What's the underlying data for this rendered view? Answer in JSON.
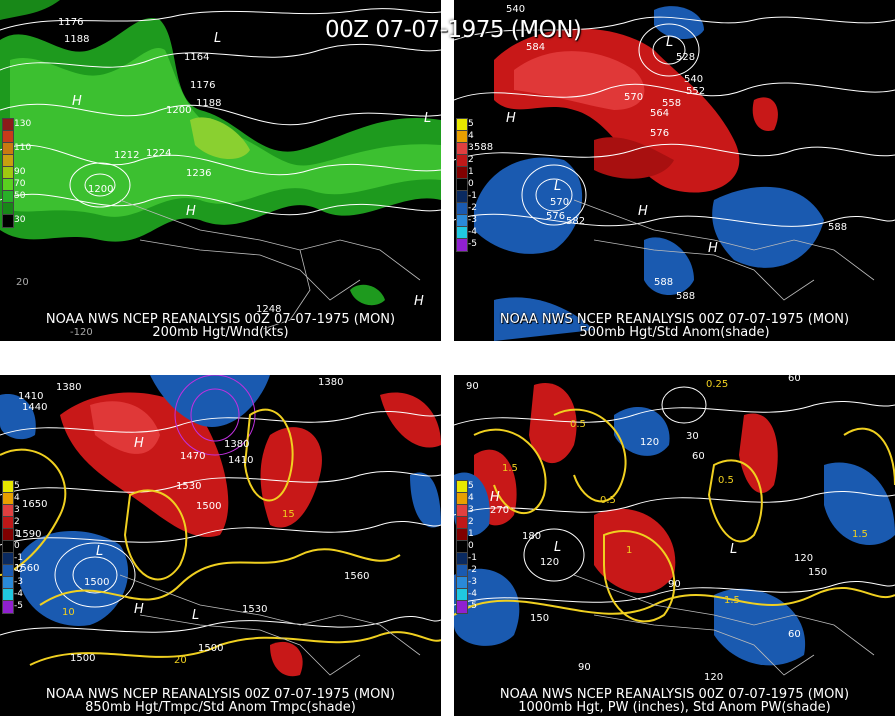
{
  "main_title": "00Z 07-07-1975 (MON)",
  "panels": [
    {
      "id": "p200",
      "caption_line1": "NOAA NWS NCEP REANALYSIS 00Z 07-07-1975 (MON)",
      "caption_line2": "200mb Hgt/Wnd(kts)",
      "scale": [
        {
          "label": "130",
          "color": "#8b1a1a"
        },
        {
          "label": "",
          "color": "#c83a1a"
        },
        {
          "label": "110",
          "color": "#c87a10"
        },
        {
          "label": "",
          "color": "#c8a010"
        },
        {
          "label": "90",
          "color": "#a0c810"
        },
        {
          "label": "70",
          "color": "#5ad020"
        },
        {
          "label": "50",
          "color": "#28b028"
        },
        {
          "label": "",
          "color": "#188818"
        },
        {
          "label": "30",
          "color": "#000000"
        }
      ],
      "labels": [
        {
          "text": "1176",
          "color": "#fff"
        },
        {
          "text": "1188",
          "color": "#fff"
        },
        {
          "text": "1164",
          "color": "#fff"
        },
        {
          "text": "1176",
          "color": "#fff"
        },
        {
          "text": "1188",
          "color": "#fff"
        },
        {
          "text": "1200",
          "color": "#fff"
        },
        {
          "text": "1212",
          "color": "#fff"
        },
        {
          "text": "1224",
          "color": "#fff"
        },
        {
          "text": "1236",
          "color": "#fff"
        },
        {
          "text": "1200",
          "color": "#fff"
        },
        {
          "text": "H",
          "color": "#fff"
        },
        {
          "text": "H",
          "color": "#fff"
        },
        {
          "text": "L",
          "color": "#fff"
        },
        {
          "text": "L",
          "color": "#fff"
        },
        {
          "text": "H",
          "color": "#fff"
        },
        {
          "text": "1248",
          "color": "#fff"
        },
        {
          "text": "-120",
          "color": "#aaa"
        },
        {
          "text": "20",
          "color": "#aaa"
        }
      ]
    },
    {
      "id": "p500",
      "caption_line1": "NOAA NWS NCEP REANALYSIS 00Z 07-07-1975 (MON)",
      "caption_line2": "500mb Hgt/Std Anom(shade)",
      "scale": [
        {
          "label": "5",
          "color": "#e8e800"
        },
        {
          "label": "4",
          "color": "#e8a000"
        },
        {
          "label": "3",
          "color": "#e04040"
        },
        {
          "label": "2",
          "color": "#c01818"
        },
        {
          "label": "1",
          "color": "#800000"
        },
        {
          "label": "0",
          "color": "#000000"
        },
        {
          "label": "-1",
          "color": "#0a2a60"
        },
        {
          "label": "-2",
          "color": "#1a5ab0"
        },
        {
          "label": "-3",
          "color": "#2a8ad8"
        },
        {
          "label": "-4",
          "color": "#20c8e0"
        },
        {
          "label": "-5",
          "color": "#9020d0"
        }
      ],
      "labels": [
        {
          "text": "540",
          "color": "#fff"
        },
        {
          "text": "584",
          "color": "#fff"
        },
        {
          "text": "528",
          "color": "#fff"
        },
        {
          "text": "540",
          "color": "#fff"
        },
        {
          "text": "552",
          "color": "#fff"
        },
        {
          "text": "558",
          "color": "#fff"
        },
        {
          "text": "564",
          "color": "#fff"
        },
        {
          "text": "570",
          "color": "#fff"
        },
        {
          "text": "576",
          "color": "#fff"
        },
        {
          "text": "588",
          "color": "#fff"
        },
        {
          "text": "570",
          "color": "#fff"
        },
        {
          "text": "576",
          "color": "#fff"
        },
        {
          "text": "582",
          "color": "#fff"
        },
        {
          "text": "588",
          "color": "#fff"
        },
        {
          "text": "588",
          "color": "#fff"
        },
        {
          "text": "588",
          "color": "#fff"
        },
        {
          "text": "H",
          "color": "#fff"
        },
        {
          "text": "H",
          "color": "#fff"
        },
        {
          "text": "H",
          "color": "#fff"
        },
        {
          "text": "L",
          "color": "#fff"
        },
        {
          "text": "L",
          "color": "#fff"
        }
      ]
    },
    {
      "id": "p850",
      "caption_line1": "NOAA NWS NCEP REANALYSIS 00Z 07-07-1975 (MON)",
      "caption_line2": "850mb Hgt/Tmpc/Std Anom Tmpc(shade)",
      "scale": [
        {
          "label": "5",
          "color": "#e8e800"
        },
        {
          "label": "4",
          "color": "#e8a000"
        },
        {
          "label": "3",
          "color": "#e04040"
        },
        {
          "label": "2",
          "color": "#c01818"
        },
        {
          "label": "1",
          "color": "#800000"
        },
        {
          "label": "0",
          "color": "#000000"
        },
        {
          "label": "-1",
          "color": "#0a2a60"
        },
        {
          "label": "-2",
          "color": "#1a5ab0"
        },
        {
          "label": "-3",
          "color": "#2a8ad8"
        },
        {
          "label": "-4",
          "color": "#20c8e0"
        },
        {
          "label": "-5",
          "color": "#9020d0"
        }
      ],
      "labels": [
        {
          "text": "1380",
          "color": "#fff"
        },
        {
          "text": "1410",
          "color": "#fff"
        },
        {
          "text": "1440",
          "color": "#fff"
        },
        {
          "text": "1470",
          "color": "#fff"
        },
        {
          "text": "1380",
          "color": "#fff"
        },
        {
          "text": "1410",
          "color": "#fff"
        },
        {
          "text": "1530",
          "color": "#fff"
        },
        {
          "text": "1500",
          "color": "#fff"
        },
        {
          "text": "1560",
          "color": "#fff"
        },
        {
          "text": "1590",
          "color": "#fff"
        },
        {
          "text": "1500",
          "color": "#fff"
        },
        {
          "text": "1530",
          "color": "#fff"
        },
        {
          "text": "1560",
          "color": "#fff"
        },
        {
          "text": "1500",
          "color": "#fff"
        },
        {
          "text": "1500",
          "color": "#fff"
        },
        {
          "text": "1650",
          "color": "#fff"
        },
        {
          "text": "1380",
          "color": "#fff"
        },
        {
          "text": "10",
          "color": "#f0d020"
        },
        {
          "text": "15",
          "color": "#f0d020"
        },
        {
          "text": "20",
          "color": "#f0d020"
        },
        {
          "text": "H",
          "color": "#fff"
        },
        {
          "text": "H",
          "color": "#fff"
        },
        {
          "text": "L",
          "color": "#fff"
        },
        {
          "text": "L",
          "color": "#fff"
        }
      ]
    },
    {
      "id": "p1000",
      "caption_line1": "NOAA NWS NCEP REANALYSIS 00Z 07-07-1975 (MON)",
      "caption_line2": "1000mb Hgt, PW (inches), Std Anom PW(shade)",
      "scale": [
        {
          "label": "5",
          "color": "#e8e800"
        },
        {
          "label": "4",
          "color": "#e8a000"
        },
        {
          "label": "3",
          "color": "#e04040"
        },
        {
          "label": "2",
          "color": "#c01818"
        },
        {
          "label": "1",
          "color": "#800000"
        },
        {
          "label": "0",
          "color": "#000000"
        },
        {
          "label": "-1",
          "color": "#0a2a60"
        },
        {
          "label": "-2",
          "color": "#1a5ab0"
        },
        {
          "label": "-3",
          "color": "#2a8ad8"
        },
        {
          "label": "-4",
          "color": "#20c8e0"
        },
        {
          "label": "-5",
          "color": "#9020d0"
        }
      ],
      "labels": [
        {
          "text": "90",
          "color": "#fff"
        },
        {
          "text": "0.25",
          "color": "#f0d020"
        },
        {
          "text": "60",
          "color": "#fff"
        },
        {
          "text": "0.5",
          "color": "#f0d020"
        },
        {
          "text": "1.5",
          "color": "#f0d020"
        },
        {
          "text": "0.5",
          "color": "#f0d020"
        },
        {
          "text": "120",
          "color": "#fff"
        },
        {
          "text": "30",
          "color": "#fff"
        },
        {
          "text": "60",
          "color": "#fff"
        },
        {
          "text": "0.5",
          "color": "#f0d020"
        },
        {
          "text": "270",
          "color": "#fff"
        },
        {
          "text": "180",
          "color": "#fff"
        },
        {
          "text": "1",
          "color": "#f0d020"
        },
        {
          "text": "120",
          "color": "#fff"
        },
        {
          "text": "150",
          "color": "#fff"
        },
        {
          "text": "90",
          "color": "#fff"
        },
        {
          "text": "1.5",
          "color": "#f0d020"
        },
        {
          "text": "150",
          "color": "#fff"
        },
        {
          "text": "120",
          "color": "#fff"
        },
        {
          "text": "1.5",
          "color": "#f0d020"
        },
        {
          "text": "60",
          "color": "#fff"
        },
        {
          "text": "90",
          "color": "#fff"
        },
        {
          "text": "120",
          "color": "#fff"
        },
        {
          "text": "H",
          "color": "#fff"
        },
        {
          "text": "L",
          "color": "#fff"
        },
        {
          "text": "L",
          "color": "#fff"
        }
      ]
    }
  ]
}
